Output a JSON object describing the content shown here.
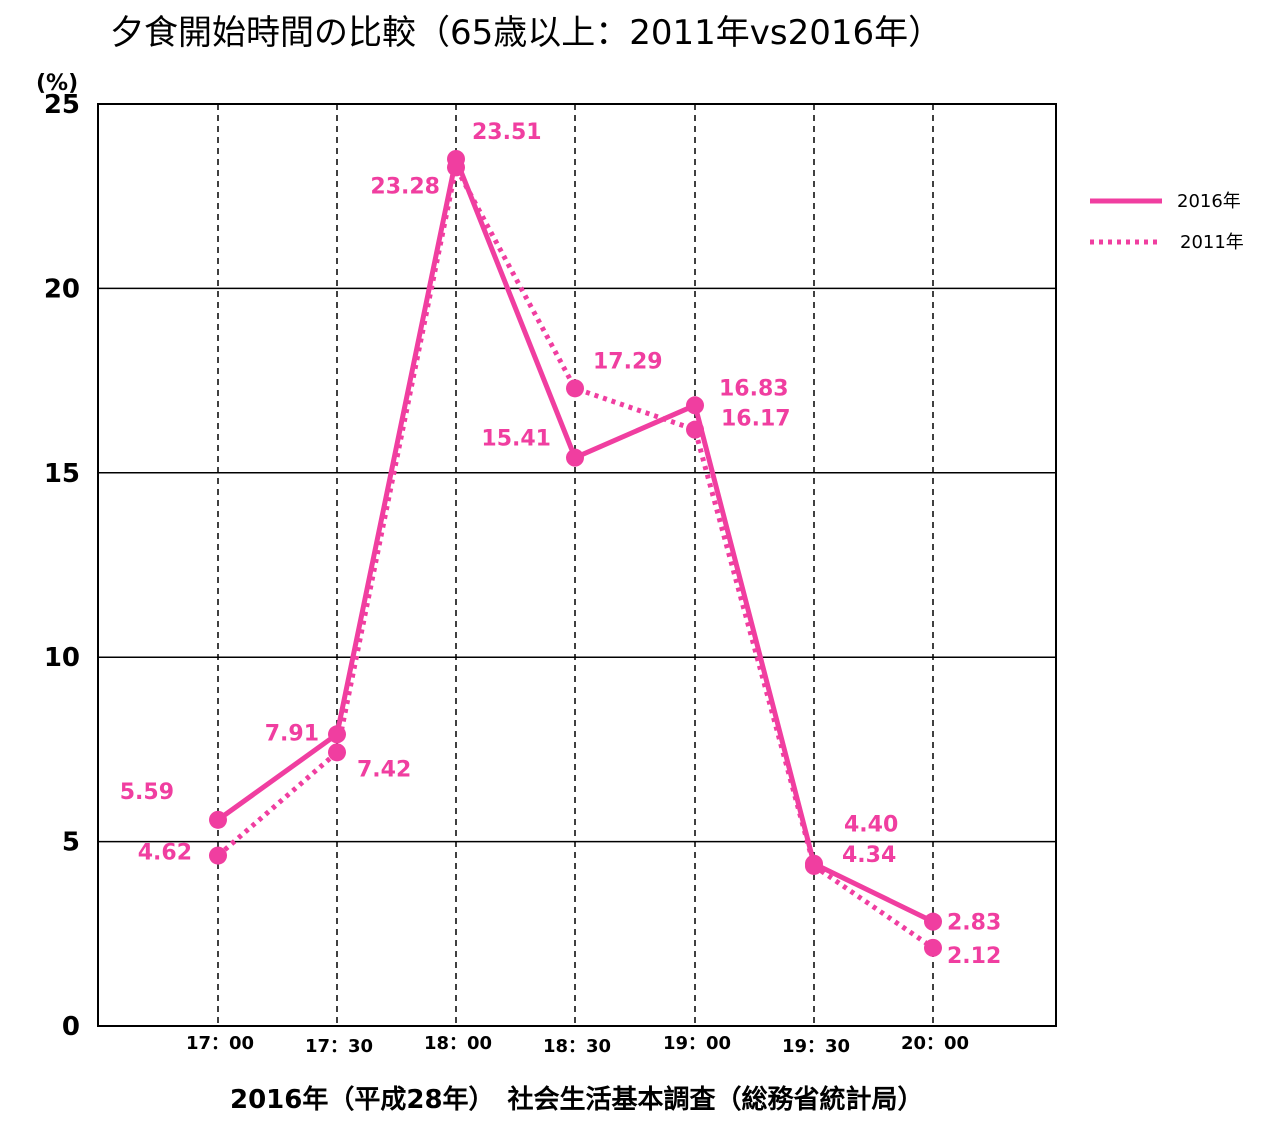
{
  "chart_data": {
    "type": "line",
    "title": "夕食開始時間の比較（65歳以上：2011年vs2016年）",
    "ylabel_unit": "(%)",
    "categories": [
      "17：00",
      "17：30",
      "18：00",
      "18：30",
      "19：00",
      "19：30",
      "20：00"
    ],
    "ylim": [
      0,
      25
    ],
    "yticks": [
      0,
      5,
      10,
      15,
      20,
      25
    ],
    "grid": "horizontal solid, vertical dashed",
    "legend_position": "right",
    "series": [
      {
        "name": "2016年",
        "style": "solid",
        "color": "#f03ea0",
        "values": [
          5.59,
          7.91,
          23.51,
          15.41,
          16.83,
          4.4,
          2.83
        ],
        "labels": [
          "5.59",
          "7.91",
          "23.51",
          "15.41",
          "16.83",
          "4.40",
          "2.83"
        ]
      },
      {
        "name": "2011年",
        "style": "dotted",
        "color": "#f03ea0",
        "values": [
          4.62,
          7.42,
          23.28,
          17.29,
          16.17,
          4.34,
          2.12
        ],
        "labels": [
          "4.62",
          "7.42",
          "23.28",
          "17.29",
          "16.17",
          "4.34",
          "2.12"
        ]
      }
    ],
    "source": "2016年（平成28年）　社会生活基本調査（総務省統計局）"
  },
  "colors": {
    "series": "#f03ea0",
    "grid": "#000000"
  }
}
